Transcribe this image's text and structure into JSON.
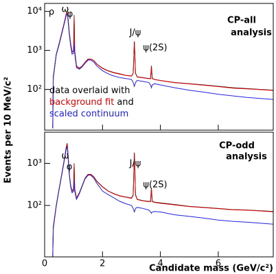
{
  "chart_data": [
    {
      "type": "line",
      "log_y": true,
      "ylabel": "Events per 10 MeV/c²",
      "xlim": [
        0,
        7.9
      ],
      "ylim": [
        9,
        16000
      ],
      "yticks": [
        {
          "value": 100,
          "label": "10²"
        },
        {
          "value": 1000,
          "label": "10³"
        },
        {
          "value": 10000,
          "label": "10⁴"
        }
      ],
      "annotations": [
        "ρ",
        "ω",
        "φ",
        "J/ψ",
        "ψ(2S)",
        "CP-all",
        "analysis"
      ],
      "legend_text": [
        "overlaid with",
        "and"
      ],
      "x": [
        0.28,
        0.3,
        0.4,
        0.5,
        0.6,
        0.7,
        0.75,
        0.78,
        0.8,
        0.85,
        0.9,
        0.95,
        1.0,
        1.02,
        1.04,
        1.1,
        1.2,
        1.3,
        1.4,
        1.5,
        1.6,
        1.7,
        1.8,
        2.0,
        2.2,
        2.4,
        2.6,
        2.8,
        3.0,
        3.06,
        3.1,
        3.14,
        3.2,
        3.4,
        3.6,
        3.66,
        3.69,
        3.72,
        3.8,
        4.0,
        4.5,
        5.0,
        5.5,
        6.0,
        6.5,
        7.0,
        7.9
      ],
      "series": [
        {
          "name": "data",
          "color": "#000000",
          "values": [
            10,
            200,
            800,
            1500,
            3000,
            6000,
            9000,
            10000,
            8000,
            3000,
            1500,
            900,
            1000,
            8000,
            1000,
            400,
            350,
            400,
            500,
            600,
            600,
            550,
            450,
            350,
            300,
            270,
            250,
            230,
            220,
            260,
            1700,
            260,
            210,
            200,
            190,
            190,
            400,
            190,
            180,
            170,
            150,
            140,
            130,
            120,
            110,
            105,
            95
          ]
        },
        {
          "name": "background fit",
          "color": "#e00000",
          "values": [
            10,
            210,
            780,
            1450,
            2950,
            5900,
            8800,
            9800,
            7900,
            2950,
            1480,
            890,
            980,
            7600,
            980,
            390,
            345,
            395,
            495,
            590,
            595,
            545,
            445,
            345,
            295,
            265,
            245,
            228,
            218,
            255,
            1650,
            255,
            208,
            198,
            188,
            188,
            380,
            188,
            178,
            168,
            148,
            138,
            128,
            118,
            108,
            103,
            94
          ]
        },
        {
          "name": "scaled continuum",
          "color": "#2020e0",
          "values": [
            10,
            190,
            760,
            1400,
            2800,
            5600,
            8000,
            8500,
            7000,
            2700,
            1300,
            800,
            850,
            1500,
            850,
            360,
            330,
            380,
            470,
            560,
            560,
            500,
            400,
            300,
            250,
            220,
            200,
            190,
            180,
            150,
            120,
            150,
            170,
            160,
            150,
            130,
            110,
            130,
            140,
            130,
            110,
            95,
            85,
            75,
            68,
            62,
            55
          ]
        }
      ]
    },
    {
      "type": "line",
      "log_y": true,
      "xlabel": "Candidate mass (GeV/c²)",
      "xlim": [
        0,
        7.9
      ],
      "ylim": [
        6,
        5500
      ],
      "xticks": [
        0,
        2,
        4,
        6
      ],
      "yticks": [
        {
          "value": 100,
          "label": "10²"
        },
        {
          "value": 1000,
          "label": "10³"
        }
      ],
      "annotations": [
        "ω",
        "φ",
        "J/ψ",
        "ψ(2S)",
        "CP-odd",
        "analysis"
      ],
      "x": [
        0.28,
        0.3,
        0.4,
        0.5,
        0.6,
        0.7,
        0.75,
        0.78,
        0.8,
        0.85,
        0.9,
        0.95,
        1.0,
        1.02,
        1.04,
        1.1,
        1.2,
        1.3,
        1.4,
        1.5,
        1.6,
        1.7,
        1.8,
        2.0,
        2.2,
        2.4,
        2.6,
        2.8,
        3.0,
        3.06,
        3.1,
        3.14,
        3.2,
        3.4,
        3.6,
        3.66,
        3.69,
        3.72,
        3.8,
        4.0,
        4.5,
        5.0,
        5.5,
        6.0,
        6.5,
        7.0,
        7.9
      ],
      "series": [
        {
          "name": "data",
          "color": "#000000",
          "values": [
            6,
            30,
            100,
            250,
            600,
            1500,
            2500,
            3000,
            2000,
            600,
            300,
            220,
            250,
            1000,
            250,
            150,
            200,
            300,
            450,
            550,
            550,
            480,
            380,
            280,
            220,
            190,
            170,
            160,
            150,
            180,
            1800,
            180,
            140,
            130,
            125,
            125,
            260,
            125,
            120,
            115,
            105,
            95,
            90,
            85,
            80,
            78,
            72
          ]
        },
        {
          "name": "background fit",
          "color": "#e00000",
          "values": [
            6,
            31,
            98,
            245,
            590,
            1480,
            2450,
            2900,
            1950,
            590,
            295,
            215,
            245,
            950,
            245,
            148,
            198,
            295,
            445,
            545,
            545,
            475,
            375,
            275,
            218,
            188,
            168,
            158,
            148,
            175,
            1750,
            175,
            138,
            128,
            123,
            123,
            250,
            123,
            118,
            113,
            103,
            94,
            89,
            84,
            79,
            77,
            71
          ]
        },
        {
          "name": "scaled continuum",
          "color": "#2020e0",
          "values": [
            6,
            28,
            95,
            240,
            570,
            1400,
            2200,
            2500,
            1800,
            560,
            280,
            200,
            220,
            400,
            220,
            140,
            190,
            290,
            430,
            520,
            520,
            440,
            340,
            220,
            180,
            150,
            125,
            110,
            100,
            85,
            70,
            85,
            90,
            85,
            78,
            70,
            65,
            70,
            72,
            70,
            60,
            55,
            50,
            45,
            42,
            40,
            36
          ]
        }
      ]
    }
  ]
}
